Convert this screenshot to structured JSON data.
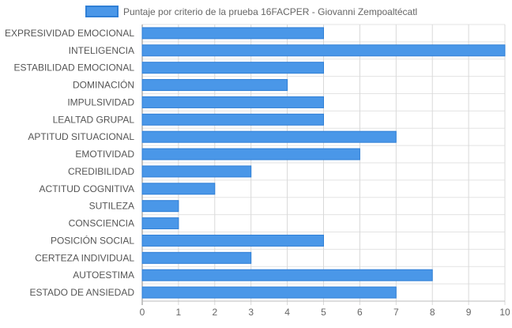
{
  "chart_data": {
    "type": "bar",
    "orientation": "horizontal",
    "title": "",
    "xlabel": "",
    "ylabel": "",
    "legend_position": "top",
    "grid": true,
    "xlim": [
      0,
      10
    ],
    "x_ticks": [
      0,
      1,
      2,
      3,
      4,
      5,
      6,
      7,
      8,
      9,
      10
    ],
    "categories": [
      "EXPRESIVIDAD EMOCIONAL",
      "INTELIGENCIA",
      "ESTABILIDAD EMOCIONAL",
      "DOMINACIÓN",
      "IMPULSIVIDAD",
      "LEALTAD GRUPAL",
      "APTITUD SITUACIONAL",
      "EMOTIVIDAD",
      "CREDIBILIDAD",
      "ACTITUD COGNITIVA",
      "SUTILEZA",
      "CONSCIENCIA",
      "POSICIÓN SOCIAL",
      "CERTEZA INDIVIDUAL",
      "AUTOESTIMA",
      "ESTADO DE ANSIEDAD"
    ],
    "series": [
      {
        "name": "Puntaje por criterio de la prueba 16FACPER - Giovanni Zempoaltécatl",
        "color": "#4a97e8",
        "border_color": "#2f7fd6",
        "values": [
          5,
          10,
          5,
          4,
          5,
          5,
          7,
          6,
          3,
          2,
          1,
          1,
          5,
          3,
          8,
          7
        ]
      }
    ]
  }
}
